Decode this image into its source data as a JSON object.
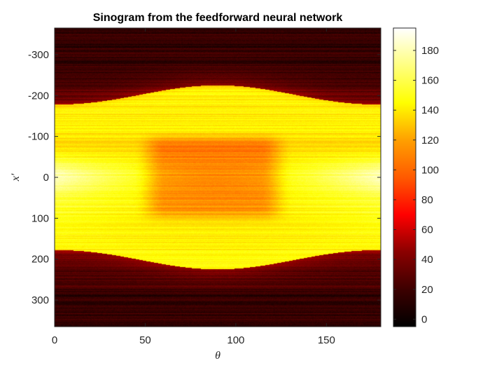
{
  "chart_data": {
    "type": "heatmap",
    "title": "Sinogram from the feedforward neural network",
    "xlabel": "θ",
    "ylabel": "x′",
    "xlim": [
      0,
      180
    ],
    "ylim": [
      -365,
      365
    ],
    "y_reversed": true,
    "x_ticks": [
      0,
      50,
      100,
      150
    ],
    "x_tick_labels": [
      "0",
      "50",
      "100",
      "150"
    ],
    "y_ticks": [
      -300,
      -200,
      -100,
      0,
      100,
      200,
      300
    ],
    "y_tick_labels": [
      "-300",
      "-200",
      "-100",
      "0",
      "100",
      "200",
      "300"
    ],
    "colorbar": {
      "colormap": "hot",
      "range": [
        -5,
        195
      ],
      "ticks": [
        0,
        20,
        40,
        60,
        80,
        100,
        120,
        140,
        160,
        180
      ],
      "tick_labels": [
        "0",
        "20",
        "40",
        "60",
        "80",
        "100",
        "120",
        "140",
        "160",
        "180"
      ]
    },
    "description_values": {
      "background_level": 10,
      "object_half_width_at_theta_0": 178,
      "object_half_width_at_theta_90": 225,
      "edge_level": 150,
      "interior_level": 140,
      "center_low_level": 110,
      "center_low_theta_range": [
        55,
        120
      ],
      "center_low_x_range": [
        -100,
        100
      ],
      "bright_side_level": 185
    }
  }
}
